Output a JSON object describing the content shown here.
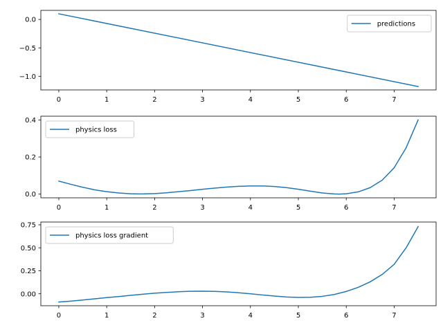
{
  "chart_data": [
    {
      "type": "line",
      "title": "",
      "xlabel": "",
      "ylabel": "",
      "xlim": [
        -0.375,
        7.875
      ],
      "ylim": [
        -1.24,
        0.16
      ],
      "xticks": [
        0,
        1,
        2,
        3,
        4,
        5,
        6,
        7
      ],
      "xtick_labels": [
        "0",
        "1",
        "2",
        "3",
        "4",
        "5",
        "6",
        "7"
      ],
      "yticks": [
        0.0,
        -0.5,
        -1.0
      ],
      "ytick_labels": [
        "0.0",
        "−0.5",
        "−1.0"
      ],
      "grid": false,
      "legend_position": "upper right",
      "series": [
        {
          "name": "predictions",
          "color": "#1f77b4",
          "x": [
            0,
            7.5
          ],
          "y": [
            0.1,
            -1.18
          ]
        }
      ]
    },
    {
      "type": "line",
      "title": "",
      "xlabel": "",
      "ylabel": "",
      "xlim": [
        -0.375,
        7.875
      ],
      "ylim": [
        -0.02,
        0.42
      ],
      "xticks": [
        0,
        1,
        2,
        3,
        4,
        5,
        6,
        7
      ],
      "xtick_labels": [
        "0",
        "1",
        "2",
        "3",
        "4",
        "5",
        "6",
        "7"
      ],
      "yticks": [
        0.0,
        0.2,
        0.4
      ],
      "ytick_labels": [
        "0.0",
        "0.2",
        "0.4"
      ],
      "grid": false,
      "legend_position": "upper left",
      "series": [
        {
          "name": "physics loss",
          "color": "#1f77b4",
          "x": [
            0,
            0.25,
            0.5,
            0.75,
            1.0,
            1.25,
            1.5,
            1.65,
            1.75,
            2.0,
            2.25,
            2.5,
            2.75,
            3.0,
            3.25,
            3.5,
            3.75,
            4.0,
            4.25,
            4.5,
            4.75,
            5.0,
            5.25,
            5.5,
            5.75,
            5.85,
            6.0,
            6.25,
            6.5,
            6.75,
            7.0,
            7.25,
            7.5
          ],
          "y": [
            0.07,
            0.053,
            0.037,
            0.023,
            0.013,
            0.006,
            0.002,
            0.001,
            0.001,
            0.003,
            0.007,
            0.013,
            0.019,
            0.026,
            0.032,
            0.038,
            0.042,
            0.044,
            0.044,
            0.041,
            0.035,
            0.026,
            0.016,
            0.006,
            0.001,
            0.0,
            0.002,
            0.012,
            0.035,
            0.075,
            0.142,
            0.25,
            0.4
          ]
        }
      ]
    },
    {
      "type": "line",
      "title": "",
      "xlabel": "",
      "ylabel": "",
      "xlim": [
        -0.375,
        7.875
      ],
      "ylim": [
        -0.13,
        0.78
      ],
      "xticks": [
        0,
        1,
        2,
        3,
        4,
        5,
        6,
        7
      ],
      "xtick_labels": [
        "0",
        "1",
        "2",
        "3",
        "4",
        "5",
        "6",
        "7"
      ],
      "yticks": [
        0.0,
        0.25,
        0.5,
        0.75
      ],
      "ytick_labels": [
        "0.00",
        "0.25",
        "0.50",
        "0.75"
      ],
      "grid": false,
      "legend_position": "upper left",
      "series": [
        {
          "name": "physics loss gradient",
          "color": "#1f77b4",
          "x": [
            0,
            0.25,
            0.5,
            0.75,
            1.0,
            1.25,
            1.5,
            1.75,
            2.0,
            2.25,
            2.5,
            2.75,
            3.0,
            3.25,
            3.5,
            3.75,
            4.0,
            4.25,
            4.5,
            4.75,
            5.0,
            5.25,
            5.5,
            5.75,
            6.0,
            6.25,
            6.5,
            6.75,
            7.0,
            7.25,
            7.5
          ],
          "y": [
            -0.09,
            -0.08,
            -0.068,
            -0.055,
            -0.042,
            -0.03,
            -0.017,
            -0.005,
            0.006,
            0.015,
            0.022,
            0.027,
            0.028,
            0.026,
            0.02,
            0.011,
            0.0,
            -0.013,
            -0.025,
            -0.035,
            -0.04,
            -0.038,
            -0.028,
            -0.008,
            0.025,
            0.07,
            0.13,
            0.21,
            0.32,
            0.5,
            0.73
          ]
        }
      ]
    }
  ]
}
